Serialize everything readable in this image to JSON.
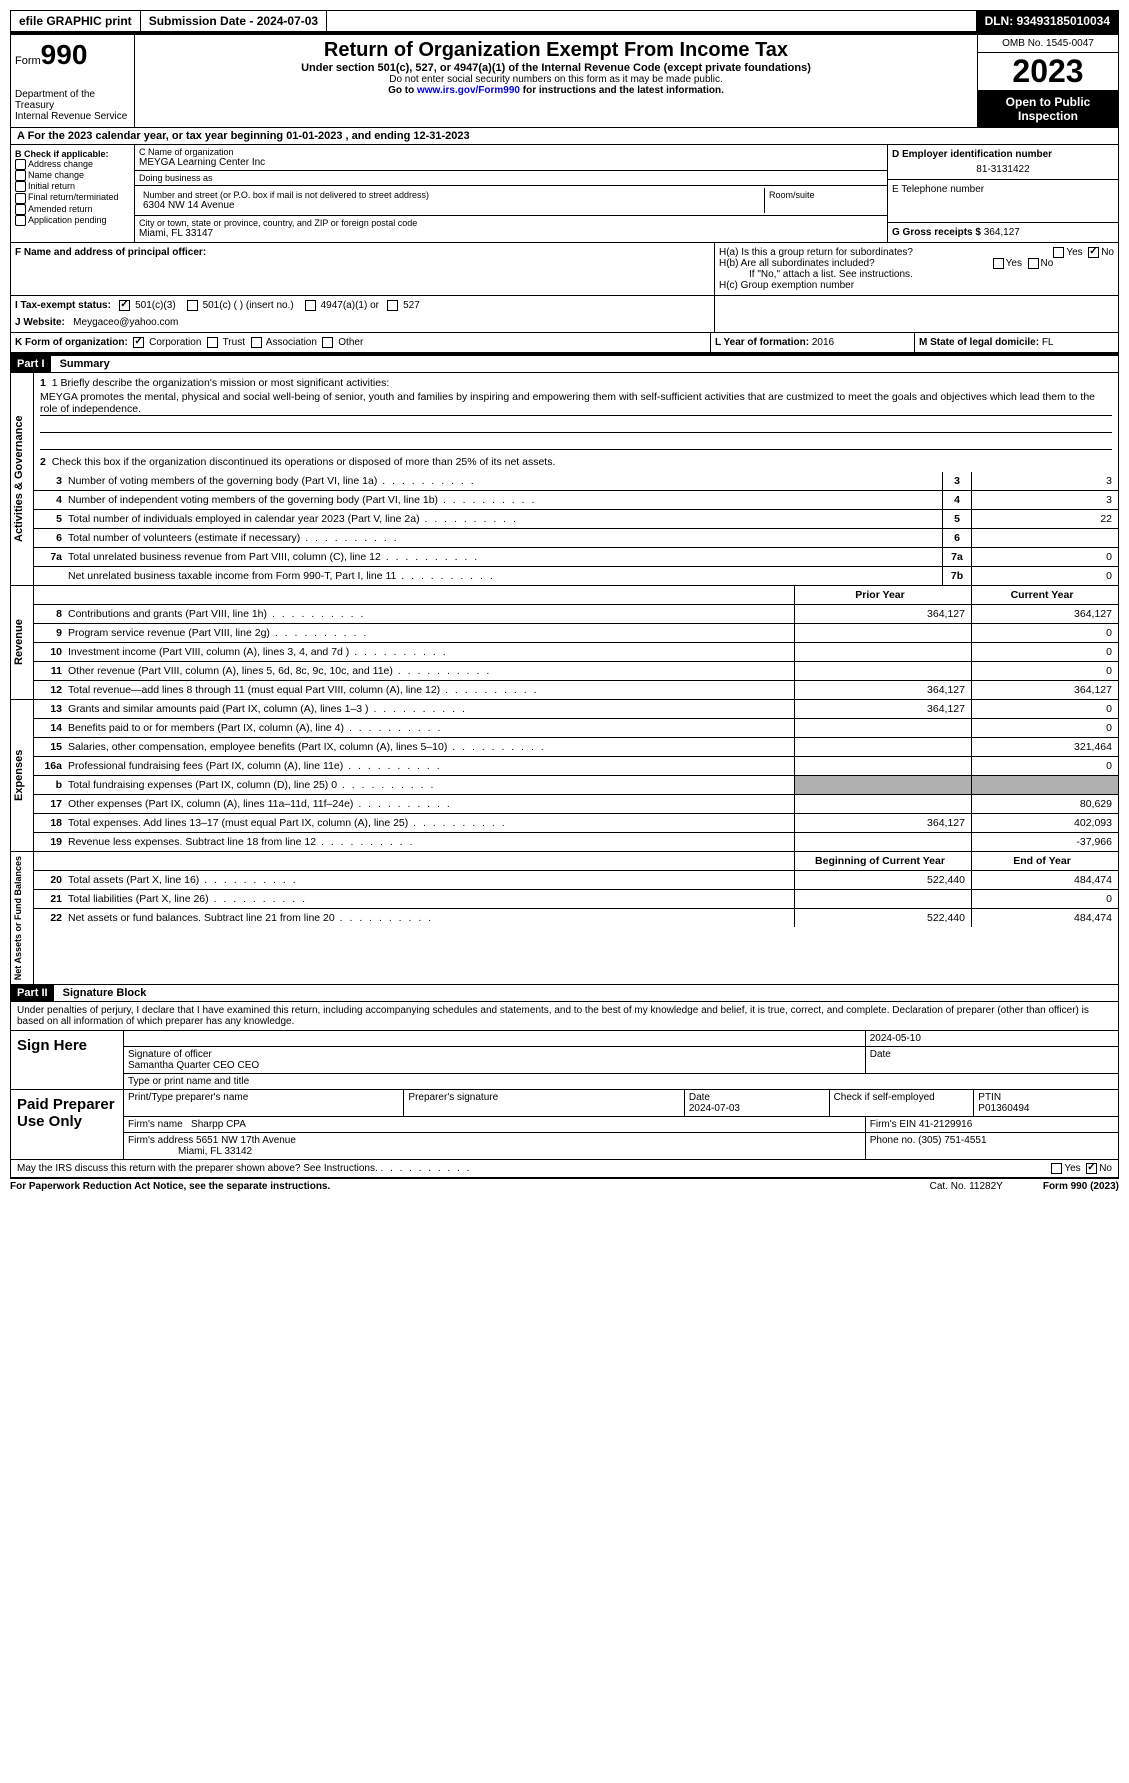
{
  "topbar": {
    "efile": "efile GRAPHIC print",
    "subdate_lbl": "Submission Date - ",
    "subdate": "2024-07-03",
    "dln_lbl": "DLN: ",
    "dln": "93493185010034"
  },
  "header": {
    "form_lbl": "Form",
    "form_num": "990",
    "dept": "Department of the Treasury\nInternal Revenue Service",
    "title": "Return of Organization Exempt From Income Tax",
    "sub": "Under section 501(c), 527, or 4947(a)(1) of the Internal Revenue Code (except private foundations)",
    "note1": "Do not enter social security numbers on this form as it may be made public.",
    "note2_pre": "Go to ",
    "note2_link": "www.irs.gov/Form990",
    "note2_post": " for instructions and the latest information.",
    "omb": "OMB No. 1545-0047",
    "year": "2023",
    "inspect": "Open to Public Inspection"
  },
  "row_a": "A   For the 2023 calendar year, or tax year beginning 01-01-2023   , and ending 12-31-2023",
  "box_b": {
    "lbl": "B Check if applicable:",
    "items": [
      "Address change",
      "Name change",
      "Initial return",
      "Final return/terminated",
      "Amended return",
      "Application pending"
    ]
  },
  "box_c": {
    "name_lbl": "C Name of organization",
    "name": "MEYGA Learning Center Inc",
    "dba_lbl": "Doing business as",
    "dba": "",
    "addr_lbl": "Number and street (or P.O. box if mail is not delivered to street address)",
    "addr": "6304 NW 14 Avenue",
    "room_lbl": "Room/suite",
    "city_lbl": "City or town, state or province, country, and ZIP or foreign postal code",
    "city": "Miami, FL  33147"
  },
  "box_d": {
    "ein_lbl": "D Employer identification number",
    "ein": "81-3131422",
    "tel_lbl": "E Telephone number",
    "tel": "",
    "gross_lbl": "G Gross receipts $ ",
    "gross": "364,127"
  },
  "box_f": {
    "lbl": "F  Name and address of principal officer:",
    "val": ""
  },
  "box_h": {
    "a_lbl": "H(a)  Is this a group return for subordinates?",
    "a_yes": "Yes",
    "a_no": "No",
    "b_lbl": "H(b)  Are all subordinates included?",
    "b_yes": "Yes",
    "b_no": "No",
    "b_note": "If \"No,\" attach a list. See instructions.",
    "c_lbl": "H(c)  Group exemption number "
  },
  "row_i": {
    "lbl": "I    Tax-exempt status:",
    "o1": "501(c)(3)",
    "o2": "501(c) (  ) (insert no.)",
    "o3": "4947(a)(1) or",
    "o4": "527"
  },
  "row_j": {
    "lbl": "J   Website: ",
    "val": "Meygaceo@yahoo.com"
  },
  "row_k": {
    "lbl": "K Form of organization:",
    "o1": "Corporation",
    "o2": "Trust",
    "o3": "Association",
    "o4": "Other"
  },
  "row_l": {
    "lbl": "L Year of formation: ",
    "val": "2016"
  },
  "row_m": {
    "lbl": "M State of legal domicile: ",
    "val": "FL"
  },
  "part1": {
    "hdr": "Part I",
    "title": "Summary",
    "l1_lbl": "1  Briefly describe the organization's mission or most significant activities:",
    "l1_txt": "MEYGA promotes the mental, physical and social well-being of senior, youth and families by inspiring and empowering them with self-sufficient activities that are custmized to meet the goals and objectives which lead them to the role of independence.",
    "l2": "Check this box        if the organization discontinued its operations or disposed of more than 25% of its net assets.",
    "lines_a": [
      {
        "n": "3",
        "t": "Number of voting members of the governing body (Part VI, line 1a)",
        "b": "3",
        "v": "3"
      },
      {
        "n": "4",
        "t": "Number of independent voting members of the governing body (Part VI, line 1b)",
        "b": "4",
        "v": "3"
      },
      {
        "n": "5",
        "t": "Total number of individuals employed in calendar year 2023 (Part V, line 2a)",
        "b": "5",
        "v": "22"
      },
      {
        "n": "6",
        "t": "Total number of volunteers (estimate if necessary)",
        "b": "6",
        "v": ""
      },
      {
        "n": "7a",
        "t": "Total unrelated business revenue from Part VIII, column (C), line 12",
        "b": "7a",
        "v": "0"
      },
      {
        "n": "",
        "t": "Net unrelated business taxable income from Form 990-T, Part I, line 11",
        "b": "7b",
        "v": "0"
      }
    ],
    "py": "Prior Year",
    "cy": "Current Year",
    "rev": [
      {
        "n": "8",
        "t": "Contributions and grants (Part VIII, line 1h)",
        "p": "364,127",
        "c": "364,127"
      },
      {
        "n": "9",
        "t": "Program service revenue (Part VIII, line 2g)",
        "p": "",
        "c": "0"
      },
      {
        "n": "10",
        "t": "Investment income (Part VIII, column (A), lines 3, 4, and 7d )",
        "p": "",
        "c": "0"
      },
      {
        "n": "11",
        "t": "Other revenue (Part VIII, column (A), lines 5, 6d, 8c, 9c, 10c, and 11e)",
        "p": "",
        "c": "0"
      },
      {
        "n": "12",
        "t": "Total revenue—add lines 8 through 11 (must equal Part VIII, column (A), line 12)",
        "p": "364,127",
        "c": "364,127"
      }
    ],
    "exp": [
      {
        "n": "13",
        "t": "Grants and similar amounts paid (Part IX, column (A), lines 1–3 )",
        "p": "364,127",
        "c": "0"
      },
      {
        "n": "14",
        "t": "Benefits paid to or for members (Part IX, column (A), line 4)",
        "p": "",
        "c": "0"
      },
      {
        "n": "15",
        "t": "Salaries, other compensation, employee benefits (Part IX, column (A), lines 5–10)",
        "p": "",
        "c": "321,464"
      },
      {
        "n": "16a",
        "t": "Professional fundraising fees (Part IX, column (A), line 11e)",
        "p": "",
        "c": "0"
      },
      {
        "n": "b",
        "t": "Total fundraising expenses (Part IX, column (D), line 25) 0",
        "p": "grey",
        "c": "grey"
      },
      {
        "n": "17",
        "t": "Other expenses (Part IX, column (A), lines 11a–11d, 11f–24e)",
        "p": "",
        "c": "80,629"
      },
      {
        "n": "18",
        "t": "Total expenses. Add lines 13–17 (must equal Part IX, column (A), line 25)",
        "p": "364,127",
        "c": "402,093"
      },
      {
        "n": "19",
        "t": "Revenue less expenses. Subtract line 18 from line 12",
        "p": "",
        "c": "-37,966"
      }
    ],
    "bcy": "Beginning of Current Year",
    "eoy": "End of Year",
    "net": [
      {
        "n": "20",
        "t": "Total assets (Part X, line 16)",
        "p": "522,440",
        "c": "484,474"
      },
      {
        "n": "21",
        "t": "Total liabilities (Part X, line 26)",
        "p": "",
        "c": "0"
      },
      {
        "n": "22",
        "t": "Net assets or fund balances. Subtract line 21 from line 20",
        "p": "522,440",
        "c": "484,474"
      }
    ],
    "vtab1": "Activities & Governance",
    "vtab2": "Revenue",
    "vtab3": "Expenses",
    "vtab4": "Net Assets or Fund Balances"
  },
  "part2": {
    "hdr": "Part II",
    "title": "Signature Block",
    "decl": "Under penalties of perjury, I declare that I have examined this return, including accompanying schedules and statements, and to the best of my knowledge and belief, it is true, correct, and complete. Declaration of preparer (other than officer) is based on all information of which preparer has any knowledge.",
    "sign_here": "Sign Here",
    "sig_lbl": "Signature of officer",
    "date_lbl": "Date",
    "date": "2024-05-10",
    "officer": "Samantha Quarter CEO  CEO",
    "type_lbl": "Type or print name and title",
    "paid": "Paid Preparer Use Only",
    "prep_name_lbl": "Print/Type preparer's name",
    "prep_sig_lbl": "Preparer's signature",
    "prep_date_lbl": "Date",
    "prep_date": "2024-07-03",
    "check_self": "Check        if self-employed",
    "ptin_lbl": "PTIN",
    "ptin": "P01360494",
    "firm_name_lbl": "Firm's name   ",
    "firm_name": "Sharpp CPA",
    "firm_ein_lbl": "Firm's EIN  ",
    "firm_ein": "41-2129916",
    "firm_addr_lbl": "Firm's address ",
    "firm_addr": "5651 NW 17th Avenue",
    "firm_city": "Miami, FL  33142",
    "phone_lbl": "Phone no. ",
    "phone": "(305) 751-4551",
    "discuss": "May the IRS discuss this return with the preparer shown above? See Instructions.",
    "yes": "Yes",
    "no": "No"
  },
  "footer": {
    "l": "For Paperwork Reduction Act Notice, see the separate instructions.",
    "m": "Cat. No. 11282Y",
    "r": "Form 990 (2023)"
  }
}
